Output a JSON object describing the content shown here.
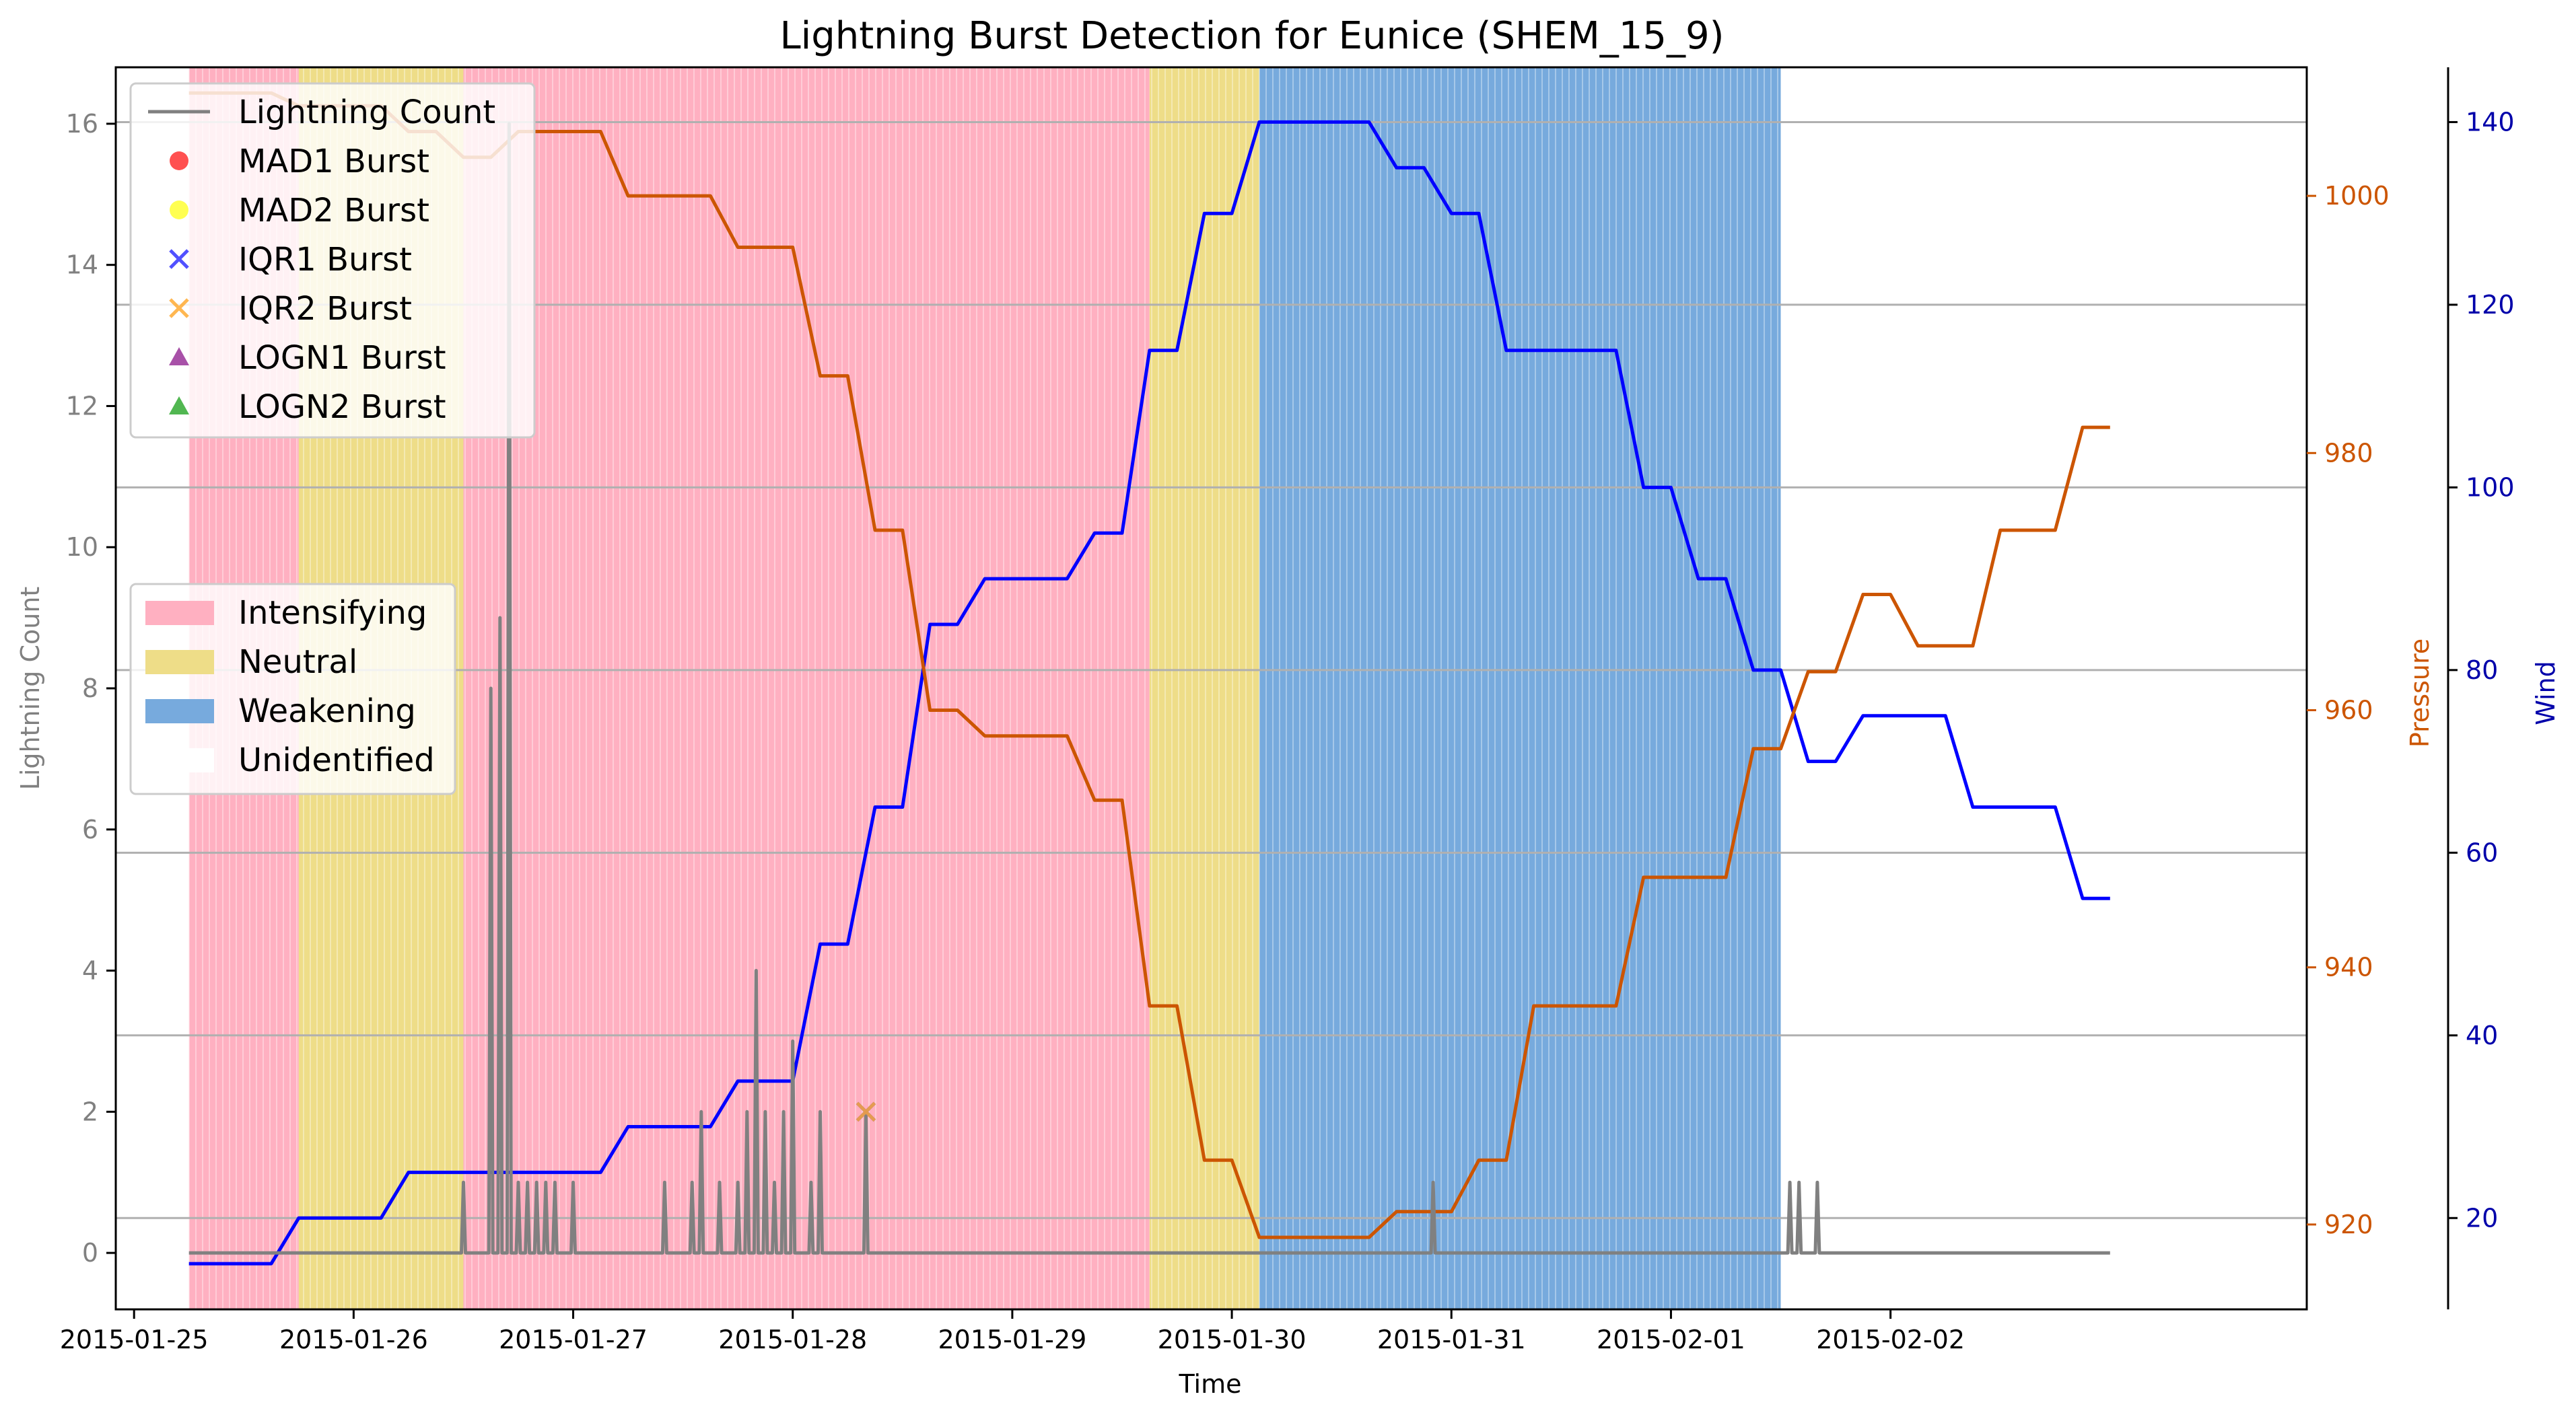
{
  "chart_data": {
    "type": "line",
    "title": "Lightning Burst Detection for Eunice (SHEM_15_9)",
    "xlabel": "Time",
    "x_ticks": [
      "2015-01-25",
      "2015-01-26",
      "2015-01-27",
      "2015-01-28",
      "2015-01-29",
      "2015-01-30",
      "2015-01-31",
      "2015-02-01",
      "2015-02-02"
    ],
    "x_range": [
      "2015-01-24T22:00",
      "2015-02-03T21:30"
    ],
    "axes": {
      "lightning": {
        "label": "Lightning Count",
        "range": [
          -0.8,
          16.8
        ],
        "ticks": [
          0,
          2,
          4,
          6,
          8,
          10,
          12,
          14,
          16
        ],
        "color": "#808080"
      },
      "pressure": {
        "label": "Pressure",
        "range": [
          913.4,
          1010.0
        ],
        "ticks": [
          920,
          940,
          960,
          980,
          1000
        ],
        "color": "#cc5500"
      },
      "wind": {
        "label": "Wind",
        "range": [
          10,
          146
        ],
        "ticks": [
          20,
          40,
          60,
          80,
          100,
          120,
          140
        ],
        "color": "#0000aa"
      }
    },
    "grid_lines_wind": [
      20,
      40,
      60,
      80,
      100,
      120,
      140
    ],
    "phases": [
      {
        "label": "Intensifying",
        "start": "2015-01-25T06:00",
        "end": "2015-01-25T18:00",
        "color": "#ffb0c1"
      },
      {
        "label": "Neutral",
        "start": "2015-01-25T18:00",
        "end": "2015-01-26T12:00",
        "color": "#eedd88"
      },
      {
        "label": "Intensifying",
        "start": "2015-01-26T12:00",
        "end": "2015-01-29T15:00",
        "color": "#ffb0c1"
      },
      {
        "label": "Neutral",
        "start": "2015-01-29T15:00",
        "end": "2015-01-30T03:00",
        "color": "#eedd88"
      },
      {
        "label": "Weakening",
        "start": "2015-01-30T03:00",
        "end": "2015-02-01T12:00",
        "color": "#77aadd"
      }
    ],
    "series": [
      {
        "name": "Wind",
        "axis": "wind",
        "color": "#0000ff",
        "points": [
          [
            "2015-01-25T06:00",
            15
          ],
          [
            "2015-01-25T15:00",
            15
          ],
          [
            "2015-01-25T18:00",
            20
          ],
          [
            "2015-01-26T03:00",
            20
          ],
          [
            "2015-01-26T06:00",
            25
          ],
          [
            "2015-01-27T03:00",
            25
          ],
          [
            "2015-01-27T06:00",
            30
          ],
          [
            "2015-01-27T15:00",
            30
          ],
          [
            "2015-01-27T18:00",
            35
          ],
          [
            "2015-01-28T00:00",
            35
          ],
          [
            "2015-01-28T03:00",
            50
          ],
          [
            "2015-01-28T06:00",
            50
          ],
          [
            "2015-01-28T09:00",
            65
          ],
          [
            "2015-01-28T12:00",
            65
          ],
          [
            "2015-01-28T15:00",
            85
          ],
          [
            "2015-01-28T18:00",
            85
          ],
          [
            "2015-01-28T21:00",
            90
          ],
          [
            "2015-01-29T06:00",
            90
          ],
          [
            "2015-01-29T09:00",
            95
          ],
          [
            "2015-01-29T12:00",
            95
          ],
          [
            "2015-01-29T15:00",
            115
          ],
          [
            "2015-01-29T18:00",
            115
          ],
          [
            "2015-01-29T21:00",
            130
          ],
          [
            "2015-01-30T00:00",
            130
          ],
          [
            "2015-01-30T03:00",
            140
          ],
          [
            "2015-01-30T15:00",
            140
          ],
          [
            "2015-01-30T18:00",
            135
          ],
          [
            "2015-01-30T21:00",
            135
          ],
          [
            "2015-01-31T00:00",
            130
          ],
          [
            "2015-01-31T03:00",
            130
          ],
          [
            "2015-01-31T06:00",
            115
          ],
          [
            "2015-01-31T18:00",
            115
          ],
          [
            "2015-01-31T21:00",
            100
          ],
          [
            "2015-02-01T00:00",
            100
          ],
          [
            "2015-02-01T03:00",
            90
          ],
          [
            "2015-02-01T06:00",
            90
          ],
          [
            "2015-02-01T09:00",
            80
          ],
          [
            "2015-02-01T12:00",
            80
          ],
          [
            "2015-02-01T15:00",
            70
          ],
          [
            "2015-02-01T18:00",
            70
          ],
          [
            "2015-02-01T21:00",
            75
          ],
          [
            "2015-02-02T06:00",
            75
          ],
          [
            "2015-02-02T09:00",
            65
          ],
          [
            "2015-02-02T18:00",
            65
          ],
          [
            "2015-02-02T21:00",
            55
          ],
          [
            "2015-02-03T00:00",
            55
          ]
        ]
      },
      {
        "name": "Pressure",
        "axis": "pressure",
        "color": "#cc5500",
        "points": [
          [
            "2015-01-25T06:00",
            1008
          ],
          [
            "2015-01-25T15:00",
            1008
          ],
          [
            "2015-01-25T18:00",
            1007
          ],
          [
            "2015-01-26T03:00",
            1007
          ],
          [
            "2015-01-26T06:00",
            1005
          ],
          [
            "2015-01-26T09:00",
            1005
          ],
          [
            "2015-01-26T12:00",
            1003
          ],
          [
            "2015-01-26T15:00",
            1003
          ],
          [
            "2015-01-26T18:00",
            1005
          ],
          [
            "2015-01-27T03:00",
            1005
          ],
          [
            "2015-01-27T06:00",
            1000
          ],
          [
            "2015-01-27T15:00",
            1000
          ],
          [
            "2015-01-27T18:00",
            996
          ],
          [
            "2015-01-28T00:00",
            996
          ],
          [
            "2015-01-28T03:00",
            986
          ],
          [
            "2015-01-28T06:00",
            986
          ],
          [
            "2015-01-28T09:00",
            974
          ],
          [
            "2015-01-28T12:00",
            974
          ],
          [
            "2015-01-28T15:00",
            960
          ],
          [
            "2015-01-28T18:00",
            960
          ],
          [
            "2015-01-28T21:00",
            958
          ],
          [
            "2015-01-29T06:00",
            958
          ],
          [
            "2015-01-29T09:00",
            953
          ],
          [
            "2015-01-29T12:00",
            953
          ],
          [
            "2015-01-29T15:00",
            937
          ],
          [
            "2015-01-29T18:00",
            937
          ],
          [
            "2015-01-29T21:00",
            925
          ],
          [
            "2015-01-30T00:00",
            925
          ],
          [
            "2015-01-30T03:00",
            919
          ],
          [
            "2015-01-30T15:00",
            919
          ],
          [
            "2015-01-30T18:00",
            921
          ],
          [
            "2015-01-31T00:00",
            921
          ],
          [
            "2015-01-31T03:00",
            925
          ],
          [
            "2015-01-31T06:00",
            925
          ],
          [
            "2015-01-31T09:00",
            937
          ],
          [
            "2015-01-31T18:00",
            937
          ],
          [
            "2015-01-31T21:00",
            947
          ],
          [
            "2015-02-01T06:00",
            947
          ],
          [
            "2015-02-01T09:00",
            957
          ],
          [
            "2015-02-01T12:00",
            957
          ],
          [
            "2015-02-01T15:00",
            963
          ],
          [
            "2015-02-01T18:00",
            963
          ],
          [
            "2015-02-01T21:00",
            969
          ],
          [
            "2015-02-02T00:00",
            969
          ],
          [
            "2015-02-02T03:00",
            965
          ],
          [
            "2015-02-02T09:00",
            965
          ],
          [
            "2015-02-02T12:00",
            974
          ],
          [
            "2015-02-02T18:00",
            974
          ],
          [
            "2015-02-02T21:00",
            982
          ],
          [
            "2015-02-03T00:00",
            982
          ]
        ]
      },
      {
        "name": "Lightning Count",
        "axis": "lightning",
        "color": "#808080",
        "range": [
          "2015-01-25T06:00",
          "2015-02-03T00:00"
        ],
        "spikes": [
          [
            "2015-01-26T12:00",
            1
          ],
          [
            "2015-01-26T15:00",
            8
          ],
          [
            "2015-01-26T16:00",
            9
          ],
          [
            "2015-01-26T17:00",
            16
          ],
          [
            "2015-01-26T18:00",
            1
          ],
          [
            "2015-01-26T19:00",
            1
          ],
          [
            "2015-01-26T20:00",
            1
          ],
          [
            "2015-01-26T21:00",
            1
          ],
          [
            "2015-01-26T22:00",
            1
          ],
          [
            "2015-01-27T00:00",
            1
          ],
          [
            "2015-01-27T10:00",
            1
          ],
          [
            "2015-01-27T13:00",
            1
          ],
          [
            "2015-01-27T14:00",
            2
          ],
          [
            "2015-01-27T16:00",
            1
          ],
          [
            "2015-01-27T18:00",
            1
          ],
          [
            "2015-01-27T19:00",
            2
          ],
          [
            "2015-01-27T20:00",
            4
          ],
          [
            "2015-01-27T21:00",
            2
          ],
          [
            "2015-01-27T22:00",
            1
          ],
          [
            "2015-01-27T23:00",
            2
          ],
          [
            "2015-01-28T00:00",
            3
          ],
          [
            "2015-01-28T02:00",
            1
          ],
          [
            "2015-01-28T03:00",
            2
          ],
          [
            "2015-01-28T08:00",
            2
          ],
          [
            "2015-01-30T22:00",
            1
          ],
          [
            "2015-02-01T13:00",
            1
          ],
          [
            "2015-02-01T14:00",
            1
          ],
          [
            "2015-02-01T16:00",
            1
          ]
        ]
      }
    ],
    "bursts": [
      {
        "series": "IQR1 Burst",
        "time": "2015-01-28T08:00",
        "value": 2
      },
      {
        "series": "IQR2 Burst",
        "time": "2015-01-28T08:00",
        "value": 2
      }
    ],
    "legend_top": {
      "placement": "top-left",
      "entries": [
        {
          "label": "Lightning Count",
          "marker": "line",
          "color": "#808080"
        },
        {
          "label": "MAD1 Burst",
          "marker": "circle",
          "color": "#ff3333"
        },
        {
          "label": "MAD2 Burst",
          "marker": "circle",
          "color": "#ffff33"
        },
        {
          "label": "IQR1 Burst",
          "marker": "x",
          "color": "#3333ff"
        },
        {
          "label": "IQR2 Burst",
          "marker": "x",
          "color": "#ffaa33"
        },
        {
          "label": "LOGN1 Burst",
          "marker": "triangle",
          "color": "#993399"
        },
        {
          "label": "LOGN2 Burst",
          "marker": "triangle",
          "color": "#33aa33"
        }
      ]
    },
    "legend_phase": {
      "placement": "center-left",
      "entries": [
        {
          "label": "Intensifying",
          "color": "#ffb0c1"
        },
        {
          "label": "Neutral",
          "color": "#eedd88"
        },
        {
          "label": "Weakening",
          "color": "#77aadd"
        },
        {
          "label": "Unidentified",
          "color": "#ffffff"
        }
      ]
    }
  }
}
